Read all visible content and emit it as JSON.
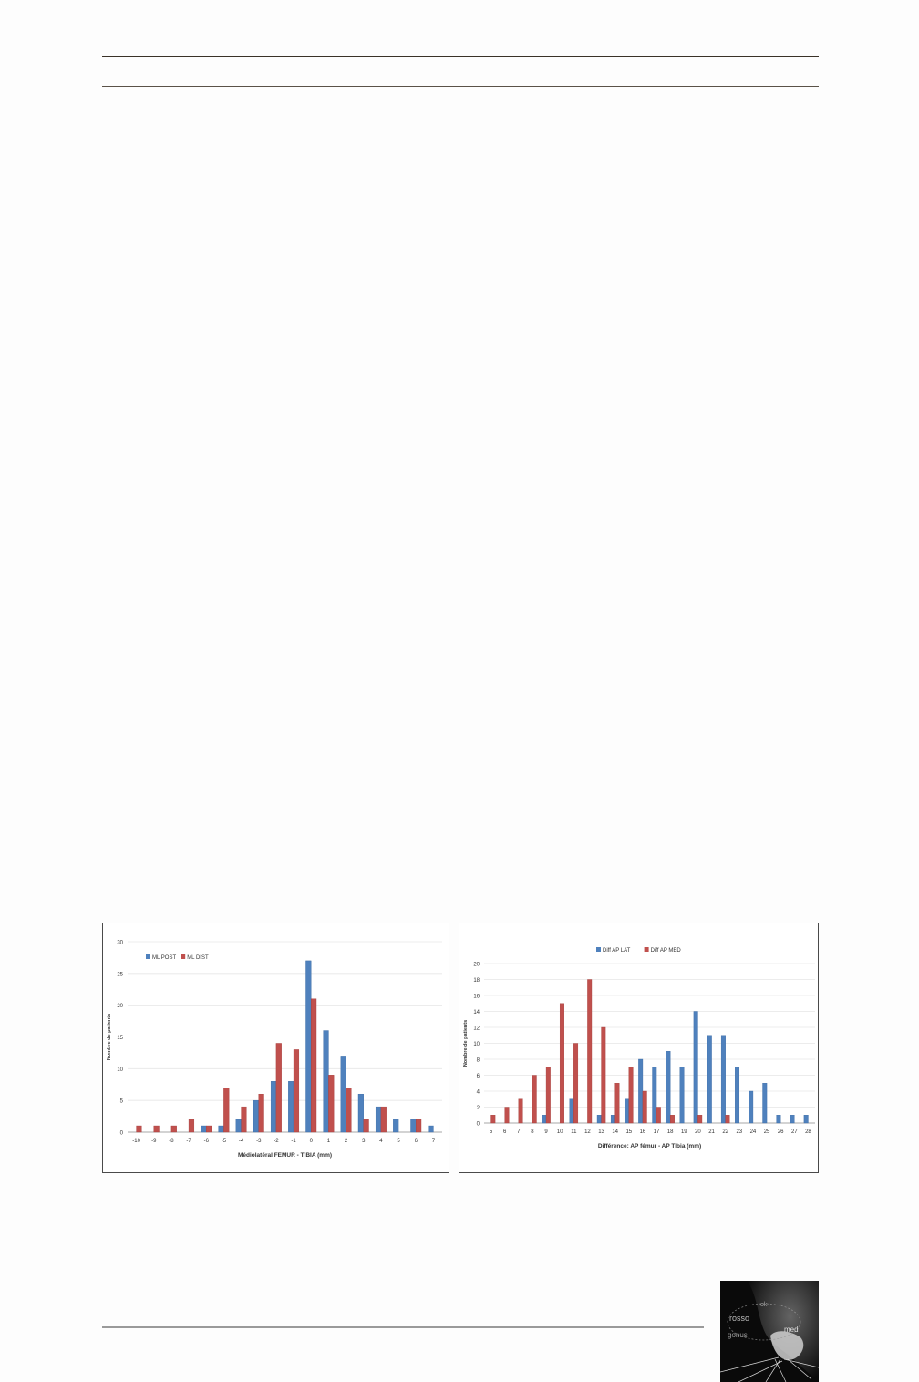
{
  "chart_data": [
    {
      "type": "bar",
      "title": "",
      "xlabel": "Médiolatéral FEMUR - TIBIA (mm)",
      "ylabel": "Nombre de patients",
      "ylim": [
        0,
        30
      ],
      "yticks": [
        0,
        5,
        10,
        15,
        20,
        25,
        30
      ],
      "legend_position": "top-left",
      "grid": true,
      "categories": [
        "-10",
        "-9",
        "-8",
        "-7",
        "-6",
        "-5",
        "-4",
        "-3",
        "-2",
        "-1",
        "0",
        "1",
        "2",
        "3",
        "4",
        "5",
        "6",
        "7"
      ],
      "series": [
        {
          "name": "ML POST",
          "color": "#4f81bd",
          "values": [
            0,
            0,
            0,
            0,
            1,
            1,
            2,
            5,
            8,
            8,
            27,
            16,
            12,
            6,
            4,
            2,
            2,
            1
          ]
        },
        {
          "name": "ML DIST",
          "color": "#c0504d",
          "values": [
            1,
            1,
            1,
            2,
            1,
            7,
            4,
            6,
            14,
            13,
            21,
            9,
            7,
            2,
            4,
            0,
            2,
            0
          ]
        }
      ]
    },
    {
      "type": "bar",
      "title": "",
      "xlabel": "Différence: AP fémur - AP Tibia (mm)",
      "ylabel": "Nombre de patients",
      "ylim": [
        0,
        20
      ],
      "yticks": [
        0,
        2,
        4,
        6,
        8,
        10,
        12,
        14,
        16,
        18,
        20
      ],
      "legend_position": "top-center",
      "grid": true,
      "categories": [
        "5",
        "6",
        "7",
        "8",
        "9",
        "10",
        "11",
        "12",
        "13",
        "14",
        "15",
        "16",
        "17",
        "18",
        "19",
        "20",
        "21",
        "22",
        "23",
        "24",
        "25",
        "26",
        "27",
        "28"
      ],
      "series": [
        {
          "name": "Diff AP LAT",
          "color": "#4f81bd",
          "values": [
            0,
            0,
            0,
            0,
            1,
            0,
            3,
            0,
            1,
            1,
            3,
            8,
            7,
            9,
            7,
            14,
            11,
            11,
            7,
            4,
            5,
            1,
            1,
            1
          ]
        },
        {
          "name": "Diff AP MED",
          "color": "#c0504d",
          "values": [
            1,
            2,
            3,
            6,
            7,
            15,
            10,
            18,
            12,
            5,
            7,
            4,
            2,
            1,
            0,
            1,
            0,
            1,
            0,
            0,
            0,
            0,
            0,
            0
          ]
        }
      ]
    }
  ],
  "logo": {
    "name": "journal-logo",
    "words": [
      "rosso",
      "gonus",
      "med",
      "ok"
    ]
  }
}
